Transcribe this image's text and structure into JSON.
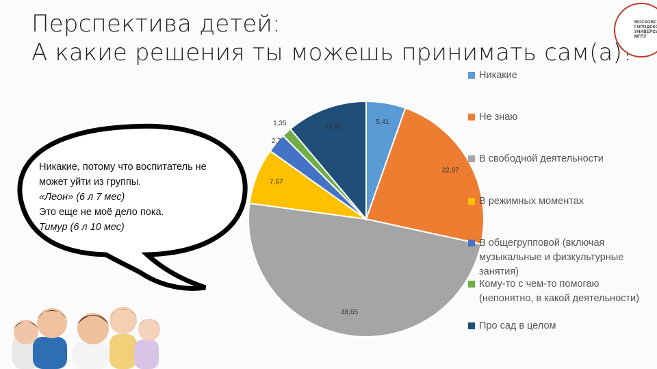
{
  "slide": {
    "title_line1": "Перспектива детей:",
    "title_line2": "А какие решения ты можешь принимать сам(а)?"
  },
  "logo": {
    "text": "МОСКОВСК\nГОРОДСКО\nУНИВЕРСИ\nМГПУ",
    "color": "#c0392b"
  },
  "quote": {
    "line1": "Никакие, потому что воспитатель не",
    "line2": "может уйти из группы.",
    "author1": "«Леон» (6 л 7 мес)",
    "line3": "Это еще не моё дело пока.",
    "author2": "Тимур (6 л 10 мес)"
  },
  "chart_data": {
    "type": "pie",
    "title": "",
    "legend_position": "right",
    "series": [
      {
        "name": "Никакие",
        "value": 5.41,
        "color": "#5b9bd5"
      },
      {
        "name": "Не знаю",
        "value": 22.97,
        "color": "#ed7d31"
      },
      {
        "name": "В свободной деятельности",
        "value": 48.65,
        "color": "#a5a5a5"
      },
      {
        "name": "В режимных моментах",
        "value": 7.67,
        "color": "#ffc000"
      },
      {
        "name": "В общегрупповой (включая\nмузыкальные и физкультурные\nзанятия)",
        "value": 2.7,
        "color": "#4472c4"
      },
      {
        "name": "Кому-то с чем-то помогаю\n(непонятно, в какой деятельности)",
        "value": 1.35,
        "color": "#70ad47"
      },
      {
        "name": "Про сад в целом",
        "value": 11.11,
        "color": "#1f4e79"
      }
    ],
    "data_labels": [
      "5,41",
      "22,97",
      "48,65",
      "7,67",
      "2,7",
      "1,35",
      "11,11"
    ]
  }
}
